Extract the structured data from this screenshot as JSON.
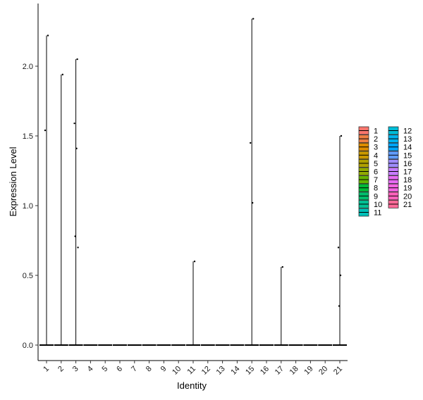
{
  "chart_data": {
    "type": "violin",
    "xlabel": "Identity",
    "ylabel": "Expression Level",
    "categories": [
      "1",
      "2",
      "3",
      "4",
      "5",
      "6",
      "7",
      "8",
      "9",
      "10",
      "11",
      "12",
      "13",
      "14",
      "15",
      "16",
      "17",
      "18",
      "19",
      "20",
      "21"
    ],
    "ylim": [
      -0.1,
      2.45
    ],
    "yticks": [
      0.0,
      0.5,
      1.0,
      1.5,
      2.0
    ],
    "ytick_labels": [
      "0.0",
      "0.5",
      "1.0",
      "1.5",
      "2.0"
    ],
    "max_values": [
      2.22,
      1.94,
      2.05,
      0,
      0,
      0,
      0,
      0,
      0,
      0,
      0.6,
      0,
      0,
      0,
      2.34,
      0,
      0.56,
      0,
      0,
      0,
      1.5
    ],
    "points": [
      {
        "cat": "1",
        "y": 2.22
      },
      {
        "cat": "1",
        "y": 1.54
      },
      {
        "cat": "2",
        "y": 1.94
      },
      {
        "cat": "3",
        "y": 2.05
      },
      {
        "cat": "3",
        "y": 1.59
      },
      {
        "cat": "3",
        "y": 1.41
      },
      {
        "cat": "3",
        "y": 0.78
      },
      {
        "cat": "3",
        "y": 0.7
      },
      {
        "cat": "11",
        "y": 0.6
      },
      {
        "cat": "15",
        "y": 2.34
      },
      {
        "cat": "15",
        "y": 1.45
      },
      {
        "cat": "15",
        "y": 1.02
      },
      {
        "cat": "17",
        "y": 0.56
      },
      {
        "cat": "21",
        "y": 1.5
      },
      {
        "cat": "21",
        "y": 0.7
      },
      {
        "cat": "21",
        "y": 0.5
      },
      {
        "cat": "21",
        "y": 0.28
      }
    ],
    "legend": {
      "placement": "right",
      "entries": [
        {
          "label": "1",
          "color": "#F8766D"
        },
        {
          "label": "2",
          "color": "#EE8044"
        },
        {
          "label": "3",
          "color": "#DE8C00"
        },
        {
          "label": "4",
          "color": "#C99800"
        },
        {
          "label": "5",
          "color": "#B0A100"
        },
        {
          "label": "6",
          "color": "#91AA00"
        },
        {
          "label": "7",
          "color": "#64B200"
        },
        {
          "label": "8",
          "color": "#00BA38"
        },
        {
          "label": "9",
          "color": "#00BE6C"
        },
        {
          "label": "10",
          "color": "#00C094"
        },
        {
          "label": "11",
          "color": "#00C0B8"
        },
        {
          "label": "12",
          "color": "#00BCD7"
        },
        {
          "label": "13",
          "color": "#00B4EF"
        },
        {
          "label": "14",
          "color": "#00A5FF"
        },
        {
          "label": "15",
          "color": "#619CFF"
        },
        {
          "label": "16",
          "color": "#9F8CFF"
        },
        {
          "label": "17",
          "color": "#C77CFF"
        },
        {
          "label": "18",
          "color": "#E76BF3"
        },
        {
          "label": "19",
          "color": "#F564E3"
        },
        {
          "label": "20",
          "color": "#FF62BC"
        },
        {
          "label": "21",
          "color": "#FF6A98"
        }
      ]
    }
  }
}
